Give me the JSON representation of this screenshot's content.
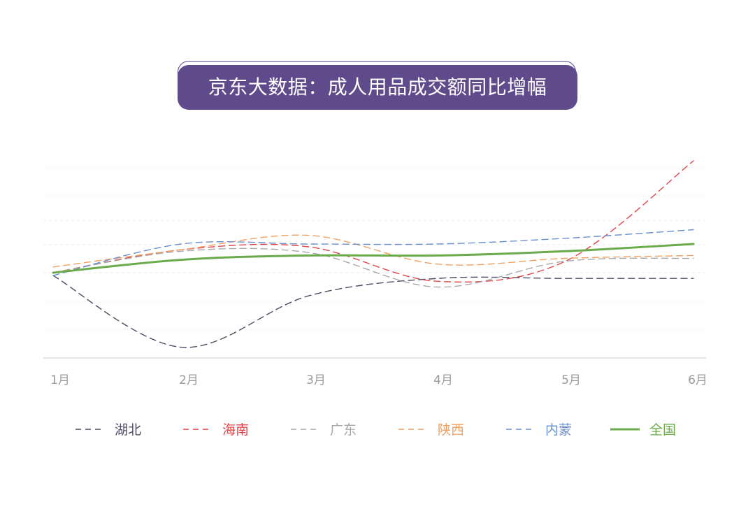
{
  "title": "京东大数据：成人用品成交额同比增幅",
  "chart_data": {
    "type": "line",
    "categories": [
      "1月",
      "2月",
      "3月",
      "4月",
      "5月",
      "6月"
    ],
    "grid": "horizontal-dashed",
    "legend": "bottom",
    "series": [
      {
        "name": "湖北",
        "color": "#4b4b63",
        "style": "dashed",
        "values": [
          -0.1,
          -2.6,
          -0.8,
          -0.2,
          -0.2,
          -0.2
        ]
      },
      {
        "name": "海南",
        "color": "#e0454a",
        "style": "dashed",
        "values": [
          0,
          0.8,
          0.9,
          -0.3,
          0.4,
          3.9
        ]
      },
      {
        "name": "广东",
        "color": "#a8a8a8",
        "style": "dashed",
        "values": [
          0,
          0.75,
          0.7,
          -0.5,
          0.4,
          0.5
        ]
      },
      {
        "name": "陕西",
        "color": "#f0a060",
        "style": "dashed",
        "values": [
          0.2,
          0.8,
          1.3,
          0.3,
          0.5,
          0.6
        ]
      },
      {
        "name": "内蒙",
        "color": "#6a8fcf",
        "style": "dashed",
        "values": [
          -0.1,
          1.0,
          1.0,
          1.0,
          1.2,
          1.5
        ]
      },
      {
        "name": "全国",
        "color": "#6aaa4a",
        "style": "solid",
        "values": [
          0,
          0.45,
          0.6,
          0.6,
          0.75,
          1.0
        ]
      }
    ]
  }
}
